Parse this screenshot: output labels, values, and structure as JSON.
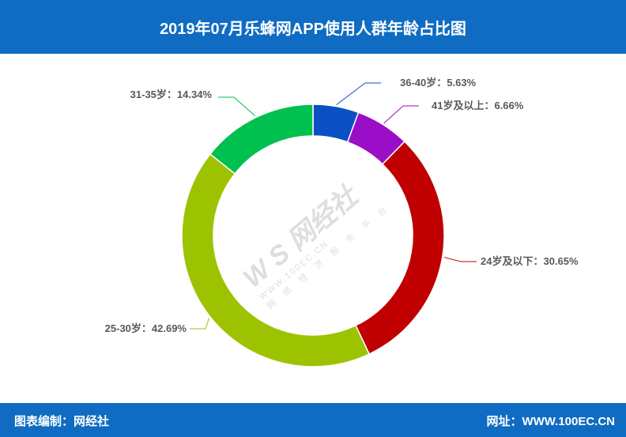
{
  "title": "2019年07月乐蜂网APP使用人群年龄占比图",
  "footer": {
    "left": "图表编制：网经社",
    "right": "网址：WWW.100EC.CN"
  },
  "watermark": {
    "logo": "W S 网经社",
    "url": "WWW.100EC.CN",
    "slogan": "网 络 经 济 服 务 平 台"
  },
  "chart_data": {
    "type": "pie",
    "style": "donut",
    "slices": [
      {
        "label": "36-40岁：5.63%",
        "value": 5.63,
        "color": "#0a4fc4"
      },
      {
        "label": "41岁及以上：6.66%",
        "value": 6.66,
        "color": "#9a0ec8"
      },
      {
        "label": "24岁及以下：30.65%",
        "value": 30.65,
        "color": "#c00000"
      },
      {
        "label": "25-30岁：42.69%",
        "value": 42.69,
        "color": "#9dc300"
      },
      {
        "label": "31-35岁：14.34%",
        "value": 14.34,
        "color": "#00c04f"
      }
    ]
  }
}
